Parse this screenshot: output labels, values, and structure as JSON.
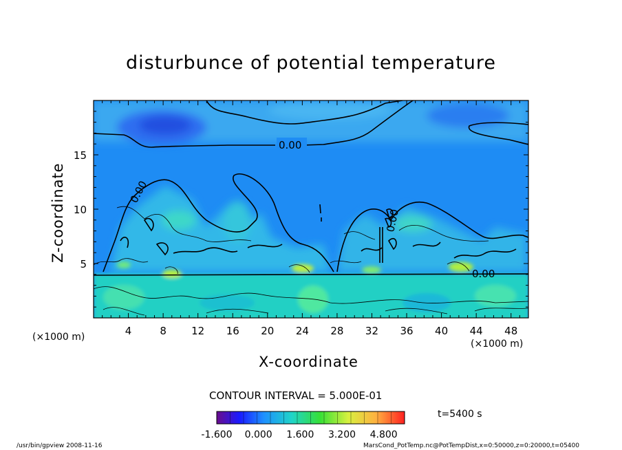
{
  "chart_data": {
    "type": "heatmap",
    "title": "disturbunce of potential temperature",
    "xlabel": "X-coordinate",
    "ylabel": "Z-coordinate",
    "x_unit": "(×1000 m)",
    "z_unit": "(×1000 m)",
    "xlim": [
      0,
      50
    ],
    "ylim": [
      0,
      20
    ],
    "x_ticks": [
      4,
      8,
      12,
      16,
      20,
      24,
      28,
      32,
      36,
      40,
      44,
      48
    ],
    "y_ticks": [
      5,
      10,
      15
    ],
    "contour_interval_text": "CONTOUR INTERVAL = 5.000E-01",
    "contour_interval": 0.5,
    "contour_labels": [
      "0.00",
      "0.00",
      "0.00",
      "0.00"
    ],
    "colorbar": {
      "min": -1.6,
      "max": 5.6,
      "tick_labels": [
        "-1.600",
        "0.000",
        "1.600",
        "3.200",
        "4.800"
      ],
      "tick_values": [
        -1.6,
        0.0,
        1.6,
        3.2,
        4.8
      ]
    },
    "colors": {
      "background_field": "#1e90ff",
      "lower_field": "#1ed0c8",
      "upper_weak": "#36a6f0",
      "upper_strong": "#2a62e8"
    },
    "grid": false
  },
  "time_label": "t=5400 s",
  "footer": {
    "left": "/usr/bin/gpview   2008-11-16",
    "right": "MarsCond_PotTemp.nc@PotTempDist,x=0:50000,z=0:20000,t=05400"
  }
}
